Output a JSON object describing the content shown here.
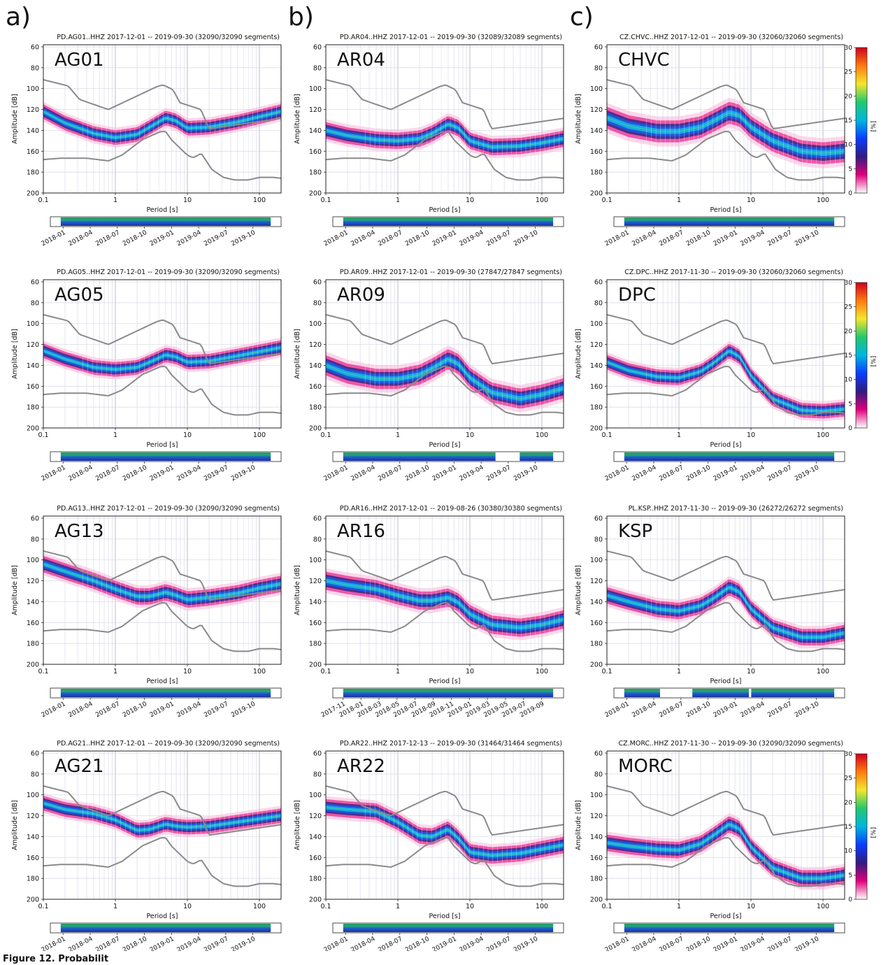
{
  "figure": {
    "column_labels": [
      "a)",
      "b)",
      "c)"
    ],
    "caption_fragment": "Figure 12. Probabilit",
    "colorbar": {
      "ticks": [
        0,
        5,
        10,
        15,
        20,
        25,
        30
      ],
      "unit": "[%]",
      "colors": [
        "#ffffff",
        "#e3007c",
        "#301c80",
        "#0a3cff",
        "#00b6e0",
        "#22c86e",
        "#f4e72a",
        "#ff7a10",
        "#d0001c"
      ]
    },
    "axis_common": {
      "xlabel": "Period [s]",
      "ylabel": "Amplitude [dB]",
      "x_ticks": [
        0.1,
        1,
        10,
        100
      ],
      "x_tick_labels": [
        "0.1",
        "1",
        "10",
        "100"
      ],
      "y_ticks": [
        60,
        80,
        100,
        120,
        140,
        160,
        180,
        200
      ],
      "xlim": [
        0.1,
        200
      ],
      "ylim": [
        58,
        200
      ],
      "y_inverted": true,
      "x_scale": "log",
      "grid": true
    },
    "noise_models": {
      "high": {
        "x": [
          0.1,
          0.22,
          0.32,
          0.8,
          3.8,
          4.6,
          6.3,
          7.9,
          15.4,
          20,
          354.8
        ],
        "y": [
          -91.5,
          -97.4,
          -110.5,
          -120,
          -98,
          -96.5,
          -101,
          -113.5,
          -120,
          -138.5,
          -126
        ]
      },
      "low": {
        "x": [
          0.1,
          0.17,
          0.4,
          0.8,
          1.24,
          2.4,
          4.3,
          5,
          6,
          10,
          12,
          15.6,
          21.9,
          31.6,
          45,
          70,
          101,
          154,
          328
        ],
        "y": [
          -168,
          -166.7,
          -166.7,
          -169.2,
          -163.7,
          -148.6,
          -141.1,
          -141.1,
          -149,
          -163.8,
          -166.2,
          -162.1,
          -177.5,
          -185,
          -187.5,
          -187.5,
          -185,
          -185,
          -187.5
        ]
      }
    }
  },
  "chart_data": [
    {
      "type": "heatmap",
      "panel_label": "AG01",
      "title": "PD.AG01..HHZ   2017-12-01 -- 2019-09-30   (32090/32090 segments)",
      "xlabel": "Period [s]",
      "ylabel": "Amplitude [dB]",
      "mode_curve": {
        "x": [
          0.1,
          0.2,
          0.5,
          1,
          2,
          3,
          5,
          7,
          10,
          20,
          50,
          100,
          200
        ],
        "y": [
          -122,
          -133,
          -143,
          -147,
          -144,
          -137,
          -128,
          -131,
          -138,
          -137,
          -132,
          -127,
          -122
        ]
      },
      "mode_width_db": 8,
      "timeline": {
        "ticks": [
          "2018-01",
          "2018-04",
          "2018-07",
          "2018-10",
          "2019-01",
          "2019-04",
          "2019-07",
          "2019-10"
        ],
        "gaps": []
      }
    },
    {
      "type": "heatmap",
      "panel_label": "AR04",
      "title": "PD.AR04..HHZ   2017-12-01 -- 2019-09-30   (32089/32089 segments)",
      "xlabel": "Period [s]",
      "ylabel": "Amplitude [dB]",
      "mode_curve": {
        "x": [
          0.1,
          0.2,
          0.5,
          1,
          2,
          3,
          5,
          7,
          10,
          20,
          50,
          100,
          200
        ],
        "y": [
          -140,
          -145,
          -149,
          -150,
          -148,
          -143,
          -134,
          -138,
          -150,
          -156,
          -155,
          -152,
          -148
        ]
      },
      "mode_width_db": 9,
      "timeline": {
        "ticks": [
          "2018-01",
          "2018-04",
          "2018-07",
          "2018-10",
          "2019-01",
          "2019-04",
          "2019-07",
          "2019-10"
        ],
        "gaps": []
      }
    },
    {
      "type": "heatmap",
      "panel_label": "CHVC",
      "title": "CZ.CHVC..HHZ   2017-12-01 -- 2019-09-30   (32060/32060 segments)",
      "xlabel": "Period [s]",
      "ylabel": "Amplitude [dB]",
      "mode_curve": {
        "x": [
          0.1,
          0.2,
          0.5,
          1,
          2,
          3,
          5,
          7,
          10,
          20,
          50,
          100,
          200
        ],
        "y": [
          -128,
          -136,
          -141,
          -141,
          -137,
          -131,
          -123,
          -126,
          -137,
          -150,
          -160,
          -162,
          -160
        ]
      },
      "mode_width_db": 12,
      "timeline": {
        "ticks": [
          "2018-01",
          "2018-04",
          "2018-07",
          "2018-10",
          "2019-01",
          "2019-04",
          "2019-07",
          "2019-10"
        ],
        "gaps": []
      }
    },
    {
      "type": "heatmap",
      "panel_label": "AG05",
      "title": "PD.AG05..HHZ   2017-12-01 -- 2019-09-30   (32090/32090 segments)",
      "xlabel": "Period [s]",
      "ylabel": "Amplitude [dB]",
      "mode_curve": {
        "x": [
          0.1,
          0.2,
          0.5,
          1,
          2,
          3,
          5,
          7,
          10,
          20,
          50,
          100,
          200
        ],
        "y": [
          -126,
          -134,
          -142,
          -144,
          -142,
          -137,
          -130,
          -132,
          -137,
          -136,
          -131,
          -127,
          -123
        ]
      },
      "mode_width_db": 8,
      "timeline": {
        "ticks": [
          "2018-01",
          "2018-04",
          "2018-07",
          "2018-10",
          "2019-01",
          "2019-04",
          "2019-07",
          "2019-10"
        ],
        "gaps": []
      }
    },
    {
      "type": "heatmap",
      "panel_label": "AR09",
      "title": "PD.AR09..HHZ   2017-12-01 -- 2019-09-30   (27847/27847 segments)",
      "xlabel": "Period [s]",
      "ylabel": "Amplitude [dB]",
      "mode_curve": {
        "x": [
          0.1,
          0.2,
          0.5,
          1,
          2,
          3,
          5,
          7,
          10,
          20,
          50,
          100,
          200
        ],
        "y": [
          -140,
          -148,
          -153,
          -153,
          -149,
          -143,
          -134,
          -139,
          -152,
          -166,
          -172,
          -168,
          -162
        ]
      },
      "mode_width_db": 11,
      "timeline": {
        "ticks": [
          "2018-01",
          "2018-04",
          "2018-07",
          "2018-10",
          "2019-01",
          "2019-04",
          "2019-07",
          "2019-10"
        ],
        "gaps": [
          [
            0.705,
            0.81
          ]
        ]
      }
    },
    {
      "type": "heatmap",
      "panel_label": "DPC",
      "title": "CZ.DPC..HHZ   2017-11-30 -- 2019-09-30   (32060/32060 segments)",
      "xlabel": "Period [s]",
      "ylabel": "Amplitude [dB]",
      "mode_curve": {
        "x": [
          0.1,
          0.2,
          0.5,
          1,
          2,
          3,
          5,
          7,
          10,
          20,
          50,
          100,
          200
        ],
        "y": [
          -137,
          -145,
          -151,
          -152,
          -146,
          -138,
          -126,
          -132,
          -150,
          -172,
          -183,
          -184,
          -182
        ]
      },
      "mode_width_db": 8,
      "timeline": {
        "ticks": [
          "2018-01",
          "2018-04",
          "2018-07",
          "2018-10",
          "2019-01",
          "2019-04",
          "2019-07",
          "2019-10"
        ],
        "gaps": []
      }
    },
    {
      "type": "heatmap",
      "panel_label": "AG13",
      "title": "PD.AG13..HHZ   2017-12-01 -- 2019-09-30   (32090/32090 segments)",
      "xlabel": "Period [s]",
      "ylabel": "Amplitude [dB]",
      "mode_curve": {
        "x": [
          0.1,
          0.2,
          0.5,
          1,
          2,
          3,
          5,
          7,
          10,
          20,
          50,
          100,
          200
        ],
        "y": [
          -104,
          -111,
          -120,
          -128,
          -135,
          -135,
          -131,
          -134,
          -138,
          -136,
          -132,
          -127,
          -123
        ]
      },
      "mode_width_db": 9,
      "timeline": {
        "ticks": [
          "2018-01",
          "2018-04",
          "2018-07",
          "2018-10",
          "2019-01",
          "2019-04",
          "2019-07",
          "2019-10"
        ],
        "gaps": []
      }
    },
    {
      "type": "heatmap",
      "panel_label": "AR16",
      "title": "PD.AR16..HHZ   2017-12-01 -- 2019-08-26   (30380/30380 segments)",
      "xlabel": "Period [s]",
      "ylabel": "Amplitude [dB]",
      "mode_curve": {
        "x": [
          0.1,
          0.2,
          0.5,
          1,
          2,
          3,
          5,
          7,
          10,
          20,
          50,
          100,
          200
        ],
        "y": [
          -120,
          -124,
          -128,
          -134,
          -139,
          -139,
          -136,
          -141,
          -152,
          -162,
          -165,
          -162,
          -157
        ]
      },
      "mode_width_db": 10,
      "timeline": {
        "ticks": [
          "2017-11",
          "2018-01",
          "2018-03",
          "2018-05",
          "2018-07",
          "2018-09",
          "2018-11",
          "2019-01",
          "2019-03",
          "2019-05",
          "2019-07",
          "2019-09"
        ],
        "gaps": []
      }
    },
    {
      "type": "heatmap",
      "panel_label": "KSP",
      "title": "PL.KSP..HHZ   2017-11-30 -- 2019-09-30   (26272/26272 segments)",
      "xlabel": "Period [s]",
      "ylabel": "Amplitude [dB]",
      "mode_curve": {
        "x": [
          0.1,
          0.2,
          0.5,
          1,
          2,
          3,
          5,
          7,
          10,
          20,
          50,
          100,
          200
        ],
        "y": [
          -134,
          -140,
          -147,
          -149,
          -144,
          -137,
          -126,
          -131,
          -147,
          -165,
          -174,
          -174,
          -170
        ]
      },
      "mode_width_db": 9,
      "timeline": {
        "ticks": [
          "2018-01",
          "2018-04",
          "2018-07",
          "2018-10",
          "2019-01",
          "2019-04",
          "2019-07",
          "2019-10"
        ],
        "gaps": [
          [
            0.2,
            0.34
          ],
          [
            0.585,
            0.595
          ]
        ]
      }
    },
    {
      "type": "heatmap",
      "panel_label": "AG21",
      "title": "PD.AG21..HHZ   2017-12-01 -- 2019-09-30   (32090/32090 segments)",
      "xlabel": "Period [s]",
      "ylabel": "Amplitude [dB]",
      "mode_curve": {
        "x": [
          0.1,
          0.2,
          0.5,
          1,
          2,
          3,
          5,
          7,
          10,
          20,
          50,
          100,
          200
        ],
        "y": [
          -108,
          -114,
          -118,
          -124,
          -134,
          -133,
          -128,
          -130,
          -131,
          -130,
          -126,
          -123,
          -120
        ]
      },
      "mode_width_db": 8,
      "timeline": {
        "ticks": [
          "2018-01",
          "2018-04",
          "2018-07",
          "2018-10",
          "2019-01",
          "2019-04",
          "2019-07",
          "2019-10"
        ],
        "gaps": []
      }
    },
    {
      "type": "heatmap",
      "panel_label": "AR22",
      "title": "PD.AR22..HHZ   2017-12-13 -- 2019-09-30   (31464/31464 segments)",
      "xlabel": "Period [s]",
      "ylabel": "Amplitude [dB]",
      "mode_curve": {
        "x": [
          0.1,
          0.2,
          0.5,
          1,
          2,
          3,
          5,
          7,
          10,
          20,
          50,
          100,
          200
        ],
        "y": [
          -112,
          -114,
          -116,
          -126,
          -139,
          -140,
          -133,
          -142,
          -155,
          -158,
          -156,
          -152,
          -148
        ]
      },
      "mode_width_db": 9,
      "timeline": {
        "ticks": [
          "2018-01",
          "2018-04",
          "2018-07",
          "2018-10",
          "2019-01",
          "2019-04",
          "2019-07",
          "2019-10"
        ],
        "gaps": []
      }
    },
    {
      "type": "heatmap",
      "panel_label": "MORC",
      "title": "CZ.MORC..HHZ   2017-11-30 -- 2019-09-30   (32090/32090 segments)",
      "xlabel": "Period [s]",
      "ylabel": "Amplitude [dB]",
      "mode_curve": {
        "x": [
          0.1,
          0.2,
          0.5,
          1,
          2,
          3,
          5,
          7,
          10,
          20,
          50,
          100,
          200
        ],
        "y": [
          -146,
          -149,
          -152,
          -153,
          -147,
          -139,
          -128,
          -133,
          -150,
          -170,
          -180,
          -180,
          -177
        ]
      },
      "mode_width_db": 9,
      "timeline": {
        "ticks": [
          "2018-01",
          "2018-04",
          "2018-07",
          "2018-10",
          "2019-01",
          "2019-04",
          "2019-07",
          "2019-10"
        ],
        "gaps": []
      }
    }
  ]
}
